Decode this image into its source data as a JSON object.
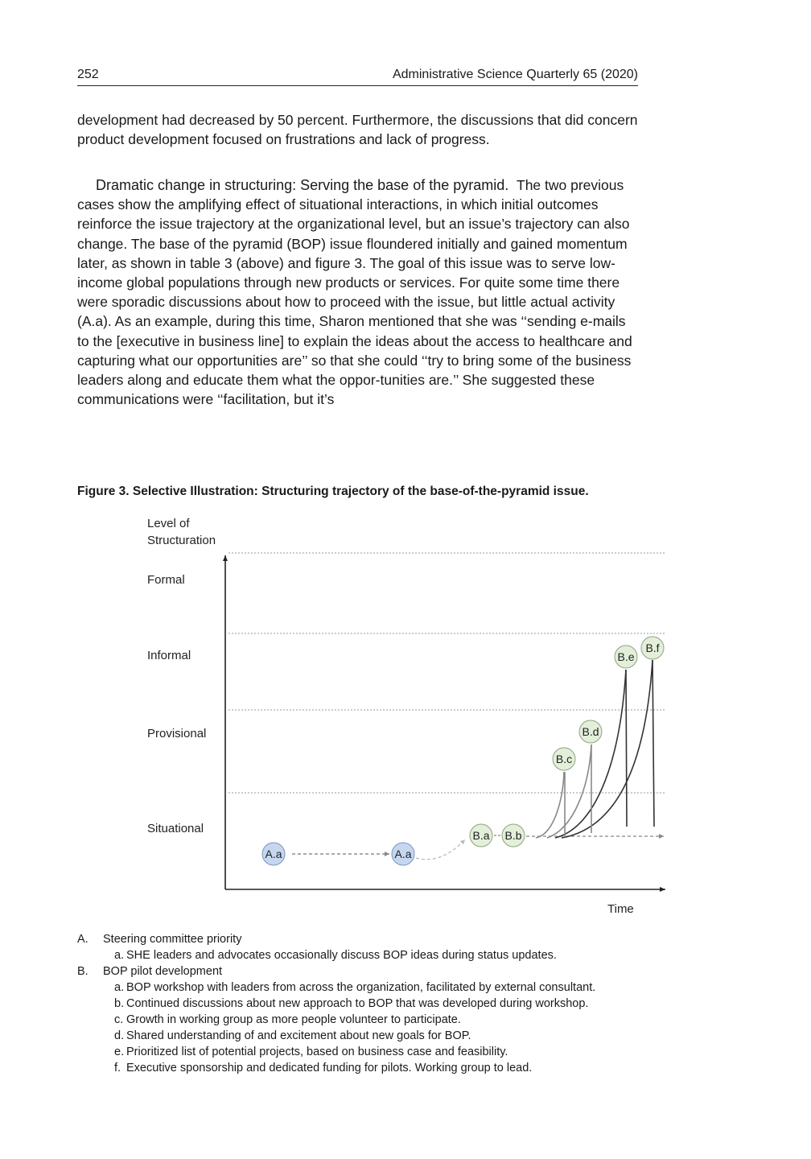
{
  "header": {
    "page_number": "252",
    "journal": "Administrative Science Quarterly 65 (2020)"
  },
  "body": {
    "para1": "development had decreased by 50 percent. Furthermore, the discussions that did concern product development focused on frustrations and lack of progress.",
    "subheading": "Dramatic change in structuring: Serving the base of the pyramid.",
    "para2": "The two previous cases show the amplifying effect of situational interactions, in which initial outcomes reinforce the issue trajectory at the organizational level, but an issue’s trajectory can also change. The base of the pyramid (BOP) issue floundered initially and gained momentum later, as shown in table 3 (above) and figure 3. The goal of this issue was to serve low-income global populations through new products or services. For quite some time there were sporadic discussions about how to proceed with the issue, but little actual activity (A.a). As an example, during this time, Sharon mentioned that she was ‘‘sending e-mails to the [executive in business line] to explain the ideas about the access to healthcare and capturing what our opportunities are’’ so that she could ‘‘try to bring some of the business leaders along and educate them what the oppor-tunities are.’’ She suggested these communications were ‘‘facilitation, but it’s"
  },
  "figure": {
    "caption": "Figure 3.  Selective Illustration: Structuring trajectory of the base-of-the-pyramid issue.",
    "y_axis_label_line1": "Level of",
    "y_axis_label_line2": "Structuration",
    "x_axis_label": "Time",
    "levels": [
      "Formal",
      "Informal",
      "Provisional",
      "Situational"
    ],
    "nodes": {
      "a1": "A.a",
      "a2": "A.a",
      "ba": "B.a",
      "bb": "B.b",
      "bc": "B.c",
      "bd": "B.d",
      "be": "B.e",
      "bf": "B.f"
    },
    "colors": {
      "a_fill": "#c5d7ef",
      "a_stroke": "#7c95bd",
      "b_fill": "#e3efd9",
      "b_stroke": "#8ea583"
    }
  },
  "legend": {
    "A": {
      "marker": "A.",
      "text": "Steering committee priority",
      "items": [
        {
          "marker": "a.",
          "text": "SHE leaders and advocates occasionally discuss BOP ideas during status updates."
        }
      ]
    },
    "B": {
      "marker": "B.",
      "text": "BOP pilot development",
      "items": [
        {
          "marker": "a.",
          "text": "BOP workshop with leaders from across the organization, facilitated by external consultant."
        },
        {
          "marker": "b.",
          "text": "Continued discussions about new approach to BOP that was developed during workshop."
        },
        {
          "marker": "c.",
          "text": "Growth in working group as more people volunteer to participate."
        },
        {
          "marker": "d.",
          "text": "Shared understanding of and excitement about new goals for BOP."
        },
        {
          "marker": "e.",
          "text": "Prioritized list of potential projects, based on business case and feasibility."
        },
        {
          "marker": "f.",
          "text": "Executive sponsorship and dedicated funding for pilots. Working group to lead."
        }
      ]
    }
  }
}
